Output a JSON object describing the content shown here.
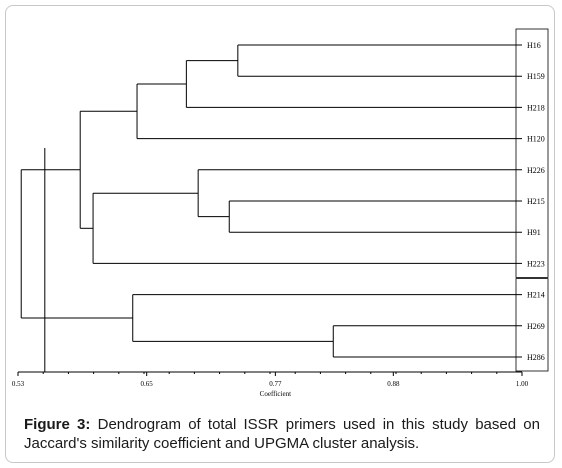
{
  "caption": {
    "label": "Figure 3:",
    "text": " Dendrogram of total ISSR primers used in this study based on Jaccard's similarity coefficient and UPGMA cluster analysis."
  },
  "chart_data": {
    "type": "dendrogram",
    "xlabel": "Coefficient",
    "xlim": [
      0.53,
      1.0
    ],
    "ticks": [
      "0.53",
      "0.65",
      "0.77",
      "0.88",
      "1.00"
    ],
    "cutoff": 0.555,
    "leaves": [
      "H16",
      "H159",
      "H218",
      "H120",
      "H226",
      "H215",
      "H91",
      "H223",
      "H214",
      "H269",
      "H286"
    ],
    "merges": [
      {
        "id": "A",
        "children": [
          "H16",
          "H159"
        ],
        "height": 0.735
      },
      {
        "id": "B",
        "children": [
          "A",
          "H218"
        ],
        "height": 0.687
      },
      {
        "id": "C",
        "children": [
          "B",
          "H120"
        ],
        "height": 0.641
      },
      {
        "id": "D",
        "children": [
          "H215",
          "H91"
        ],
        "height": 0.727
      },
      {
        "id": "E",
        "children": [
          "H226",
          "D"
        ],
        "height": 0.698
      },
      {
        "id": "F",
        "children": [
          "E",
          "H223"
        ],
        "height": 0.6
      },
      {
        "id": "G",
        "children": [
          "C",
          "F"
        ],
        "height": 0.588
      },
      {
        "id": "H",
        "children": [
          "H269",
          "H286"
        ],
        "height": 0.824
      },
      {
        "id": "I",
        "children": [
          "H214",
          "H"
        ],
        "height": 0.637
      },
      {
        "id": "J",
        "children": [
          "G",
          "I"
        ],
        "height": 0.533
      }
    ],
    "boxed_groups": [
      [
        "H16",
        "H159",
        "H218",
        "H120",
        "H226",
        "H215",
        "H91",
        "H223"
      ],
      [
        "H214",
        "H269",
        "H286"
      ]
    ]
  }
}
